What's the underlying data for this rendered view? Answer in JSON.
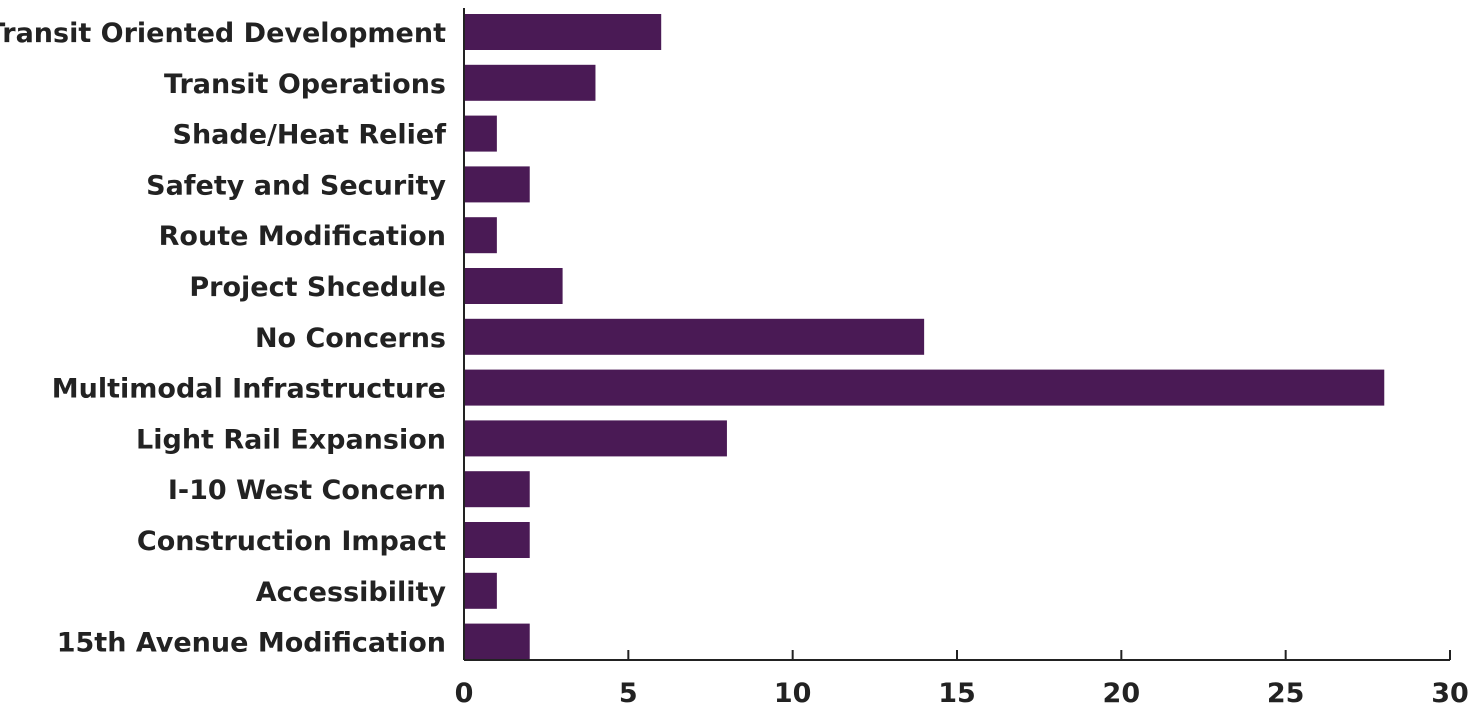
{
  "chart_data": {
    "type": "bar",
    "orientation": "horizontal",
    "categories": [
      "Transit Oriented Development",
      "Transit Operations",
      "Shade/Heat Relief",
      "Safety and Security",
      "Route Modification",
      "Project Shcedule",
      "No Concerns",
      "Multimodal Infrastructure",
      "Light Rail Expansion",
      "I-10 West Concern",
      "Construction Impact",
      "Accessibility",
      "15th Avenue Modification"
    ],
    "values": [
      6,
      4,
      1,
      2,
      1,
      3,
      14,
      28,
      8,
      2,
      2,
      1,
      2
    ],
    "xlim": [
      0,
      30
    ],
    "xticks": [
      0,
      5,
      10,
      15,
      20,
      25,
      30
    ],
    "title": "",
    "xlabel": "",
    "ylabel": "",
    "grid": false,
    "legend": "none",
    "bar_color": "#4a1a55",
    "axis_color": "#222222"
  }
}
